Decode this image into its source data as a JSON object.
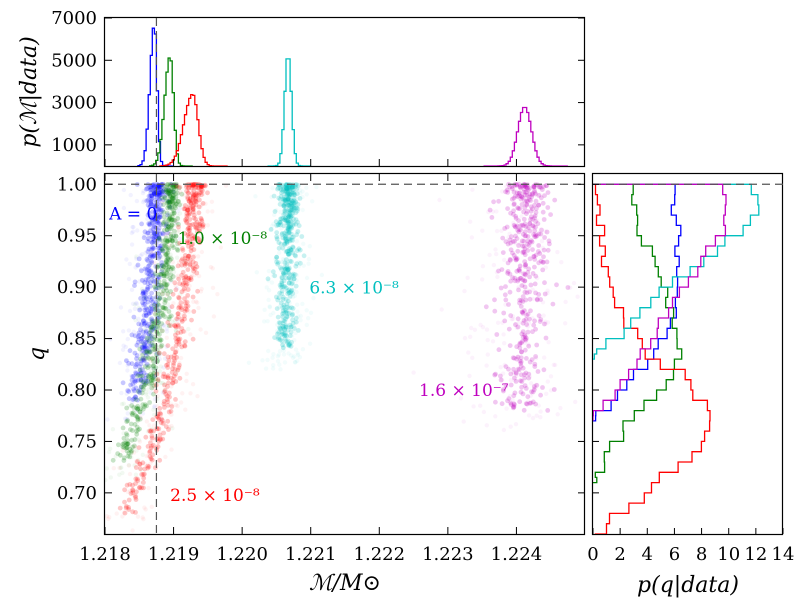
{
  "chart_data": {
    "type": "scatter",
    "title": "",
    "main_panel": {
      "xlabel": "ℳ/M⊙",
      "ylabel": "q",
      "xlim": [
        1.218,
        1.225
      ],
      "ylim": [
        0.66,
        1.01
      ],
      "xticks": [
        1.218,
        1.219,
        1.22,
        1.221,
        1.222,
        1.223,
        1.224
      ],
      "xtick_labels": [
        "1.218",
        "1.219",
        "1.220",
        "1.221",
        "1.222",
        "1.223",
        "1.224"
      ],
      "yticks": [
        0.7,
        0.75,
        0.8,
        0.85,
        0.9,
        0.95,
        1.0
      ],
      "ytick_labels": [
        "0.70",
        "0.75",
        "0.80",
        "0.85",
        "0.90",
        "0.95",
        "1.00"
      ],
      "reference_lines": [
        {
          "orientation": "vertical",
          "x": 1.21875,
          "style": "dashed"
        },
        {
          "orientation": "horizontal",
          "y": 1.0,
          "style": "dashed"
        }
      ],
      "series": [
        {
          "name": "A = 0",
          "label": "A = 0",
          "color": "#0000ff",
          "ridge": [
            {
              "q": 1.0,
              "M": 1.21875
            },
            {
              "q": 0.95,
              "M": 1.21872
            },
            {
              "q": 0.9,
              "M": 1.21866
            },
            {
              "q": 0.85,
              "M": 1.21858
            },
            {
              "q": 0.8,
              "M": 1.21845
            }
          ],
          "q_range": [
            0.79,
            1.0
          ],
          "spread": 8e-05
        },
        {
          "name": "1.0 × 10^-8",
          "label": "1.0 × 10⁻⁸",
          "color": "#008000",
          "ridge": [
            {
              "q": 1.0,
              "M": 1.21898
            },
            {
              "q": 0.95,
              "M": 1.21893
            },
            {
              "q": 0.9,
              "M": 1.21885
            },
            {
              "q": 0.85,
              "M": 1.21874
            },
            {
              "q": 0.8,
              "M": 1.21858
            },
            {
              "q": 0.75,
              "M": 1.21835
            }
          ],
          "q_range": [
            0.73,
            1.0
          ],
          "spread": 7e-05
        },
        {
          "name": "2.5 × 10^-8",
          "label": "2.5 × 10⁻⁸",
          "color": "#ff0000",
          "ridge": [
            {
              "q": 1.0,
              "M": 1.21932
            },
            {
              "q": 0.95,
              "M": 1.21926
            },
            {
              "q": 0.9,
              "M": 1.21918
            },
            {
              "q": 0.85,
              "M": 1.21907
            },
            {
              "q": 0.8,
              "M": 1.21892
            },
            {
              "q": 0.75,
              "M": 1.2187
            },
            {
              "q": 0.7,
              "M": 1.2184
            }
          ],
          "q_range": [
            0.68,
            1.0
          ],
          "spread": 8e-05
        },
        {
          "name": "6.3 × 10^-8",
          "label": "6.3 × 10⁻⁸",
          "color": "#00bfbf",
          "ridge": [
            {
              "q": 1.0,
              "M": 1.22068
            },
            {
              "q": 0.95,
              "M": 1.22066
            },
            {
              "q": 0.9,
              "M": 1.22064
            },
            {
              "q": 0.86,
              "M": 1.22062
            }
          ],
          "q_range": [
            0.84,
            1.0
          ],
          "spread": 8e-05
        },
        {
          "name": "1.6 × 10^-7",
          "label": "1.6 × 10⁻⁷",
          "color": "#bf00bf",
          "ridge": [
            {
              "q": 1.0,
              "M": 1.22412
            },
            {
              "q": 0.95,
              "M": 1.22412
            },
            {
              "q": 0.9,
              "M": 1.22411
            },
            {
              "q": 0.85,
              "M": 1.22409
            },
            {
              "q": 0.8,
              "M": 1.22408
            }
          ],
          "q_range": [
            0.78,
            1.0
          ],
          "spread": 0.00018
        }
      ],
      "annotations": [
        {
          "series": "A = 0",
          "text": "A = 0",
          "color": "#0000ff",
          "M": 1.21806,
          "q": 0.966
        },
        {
          "series": "1.0 × 10^-8",
          "text": "1.0 × 10⁻⁸",
          "color": "#008000",
          "M": 1.21906,
          "q": 0.942
        },
        {
          "series": "2.5 × 10^-8",
          "text": "2.5 × 10⁻⁸",
          "color": "#ff0000",
          "M": 1.21895,
          "q": 0.692
        },
        {
          "series": "6.3 × 10^-8",
          "text": "6.3 × 10⁻⁸",
          "color": "#00bfbf",
          "M": 1.22098,
          "q": 0.894
        },
        {
          "series": "1.6 × 10^-7",
          "text": "1.6 × 10⁻⁷",
          "color": "#bf00bf",
          "M": 1.22258,
          "q": 0.794
        }
      ]
    },
    "top_panel": {
      "type": "histogram",
      "ylabel": "p(ℳ|data)",
      "xlim": [
        1.218,
        1.225
      ],
      "ylim": [
        0,
        7000
      ],
      "yticks": [
        1000,
        3000,
        5000,
        7000
      ],
      "ytick_labels": [
        "1000",
        "3000",
        "5000",
        "7000"
      ],
      "reference_lines": [
        {
          "orientation": "vertical",
          "x": 1.21875,
          "style": "dashed"
        }
      ],
      "series": [
        {
          "name": "A = 0",
          "color": "#0000ff",
          "peak_M": 1.21872,
          "peak": 6700,
          "width": 4e-05,
          "skew": -1
        },
        {
          "name": "1.0 × 10^-8",
          "color": "#008000",
          "peak_M": 1.21895,
          "peak": 5200,
          "width": 5e-05,
          "skew": -1
        },
        {
          "name": "2.5 × 10^-8",
          "color": "#ff0000",
          "peak_M": 1.21928,
          "peak": 3400,
          "width": 8e-05,
          "skew": -1
        },
        {
          "name": "6.3 × 10^-8",
          "color": "#00bfbf",
          "peak_M": 1.22067,
          "peak": 5300,
          "width": 5e-05,
          "skew": 0
        },
        {
          "name": "1.6 × 10^-7",
          "color": "#bf00bf",
          "peak_M": 1.22412,
          "peak": 2800,
          "width": 0.0001,
          "skew": 0
        }
      ]
    },
    "right_panel": {
      "type": "histogram",
      "orientation": "horizontal",
      "xlabel": "p(q|data)",
      "xlim": [
        0,
        14
      ],
      "ylim": [
        0.66,
        1.01
      ],
      "xticks": [
        0,
        2,
        4,
        6,
        8,
        10,
        12,
        14
      ],
      "xtick_labels": [
        "0",
        "2",
        "4",
        "6",
        "8",
        "10",
        "12",
        "14"
      ],
      "reference_lines": [
        {
          "orientation": "horizontal",
          "y": 1.0,
          "style": "dashed"
        }
      ],
      "series": [
        {
          "name": "A = 0",
          "color": "#0000ff",
          "q": [
            0.78,
            0.8,
            0.82,
            0.84,
            0.86,
            0.88,
            0.9,
            0.92,
            0.94,
            0.96,
            0.98,
            1.0
          ],
          "density": [
            0.5,
            2.0,
            3.0,
            4.5,
            5.5,
            6.0,
            6.2,
            6.3,
            6.2,
            6.3,
            6.0,
            5.8
          ]
        },
        {
          "name": "1.0 × 10^-8",
          "color": "#008000",
          "q": [
            0.72,
            0.74,
            0.76,
            0.78,
            0.8,
            0.82,
            0.84,
            0.86,
            0.88,
            0.9,
            0.92,
            0.94,
            0.96,
            0.98,
            1.0
          ],
          "density": [
            0.2,
            1.0,
            2.0,
            3.0,
            4.5,
            6.0,
            6.3,
            6.0,
            5.8,
            5.5,
            5.0,
            4.2,
            3.5,
            3.0,
            2.8
          ]
        },
        {
          "name": "2.5 × 10^-8",
          "color": "#ff0000",
          "q": [
            0.66,
            0.68,
            0.7,
            0.72,
            0.74,
            0.76,
            0.78,
            0.8,
            0.82,
            0.84,
            0.86,
            0.88,
            0.9,
            0.92,
            0.94,
            0.96,
            0.98,
            1.0
          ],
          "density": [
            0.3,
            1.5,
            3.5,
            5.0,
            7.0,
            8.5,
            8.8,
            7.5,
            6.5,
            4.0,
            3.0,
            2.0,
            1.5,
            1.0,
            0.8,
            0.6,
            0.3,
            0.2
          ]
        },
        {
          "name": "6.3 × 10^-8",
          "color": "#00bfbf",
          "q": [
            0.84,
            0.86,
            0.88,
            0.9,
            0.92,
            0.94,
            0.96,
            0.98,
            1.0
          ],
          "density": [
            0.5,
            2.0,
            3.5,
            5.0,
            7.0,
            9.0,
            11.0,
            12.5,
            11.5
          ]
        },
        {
          "name": "1.6 × 10^-7",
          "color": "#bf00bf",
          "q": [
            0.78,
            0.8,
            0.82,
            0.84,
            0.86,
            0.88,
            0.9,
            0.92,
            0.94,
            0.96,
            0.98,
            1.0
          ],
          "density": [
            0.3,
            1.5,
            2.5,
            3.5,
            4.5,
            5.5,
            6.5,
            7.5,
            8.5,
            9.5,
            10.0,
            9.5
          ]
        }
      ]
    }
  }
}
